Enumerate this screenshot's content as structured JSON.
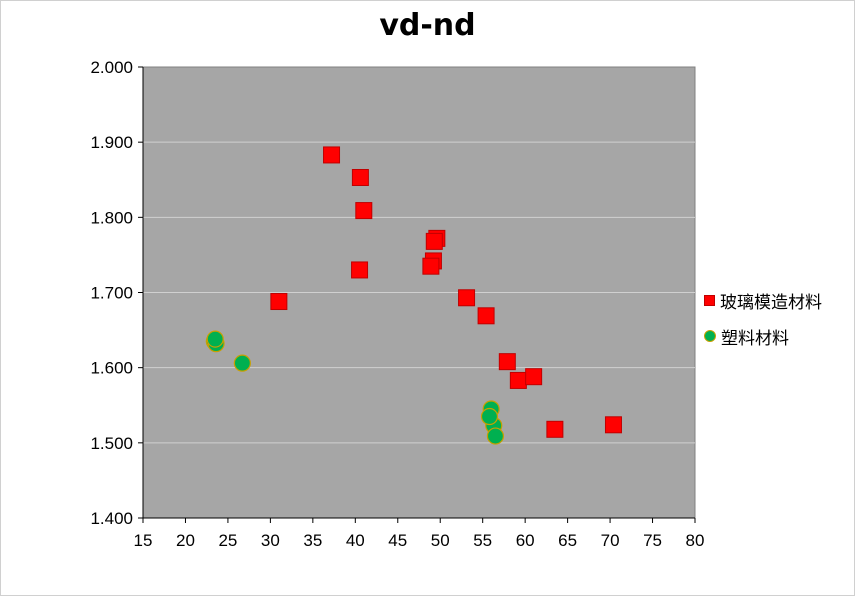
{
  "chart_data": {
    "type": "scatter",
    "title": "vd-nd",
    "xlabel": "",
    "ylabel": "",
    "xlim": [
      15,
      80
    ],
    "ylim": [
      1.4,
      2.0
    ],
    "xticks": [
      "15",
      "20",
      "25",
      "30",
      "35",
      "40",
      "45",
      "50",
      "55",
      "60",
      "65",
      "70",
      "75",
      "80"
    ],
    "yticks": [
      "1.400",
      "1.500",
      "1.600",
      "1.700",
      "1.800",
      "1.900",
      "2.000"
    ],
    "grid": "horizontal",
    "legend": "right",
    "plot_background": "#a6a6a6",
    "series": [
      {
        "name": "玻璃模造材料",
        "marker": "square",
        "color": "#ff0000",
        "points": [
          [
            37.2,
            1.883
          ],
          [
            40.6,
            1.853
          ],
          [
            41.0,
            1.809
          ],
          [
            49.6,
            1.772
          ],
          [
            49.3,
            1.768
          ],
          [
            49.2,
            1.742
          ],
          [
            48.9,
            1.735
          ],
          [
            40.5,
            1.73
          ],
          [
            31.0,
            1.688
          ],
          [
            53.1,
            1.693
          ],
          [
            55.4,
            1.669
          ],
          [
            57.9,
            1.608
          ],
          [
            59.2,
            1.583
          ],
          [
            61.0,
            1.588
          ],
          [
            63.5,
            1.518
          ],
          [
            70.4,
            1.524
          ]
        ]
      },
      {
        "name": "塑料材料",
        "marker": "circle",
        "color": "#00b050",
        "points": [
          [
            23.4,
            1.635
          ],
          [
            23.6,
            1.632
          ],
          [
            23.5,
            1.638
          ],
          [
            26.7,
            1.606
          ],
          [
            56.0,
            1.545
          ],
          [
            56.3,
            1.523
          ],
          [
            55.8,
            1.535
          ],
          [
            56.5,
            1.509
          ]
        ]
      }
    ]
  }
}
